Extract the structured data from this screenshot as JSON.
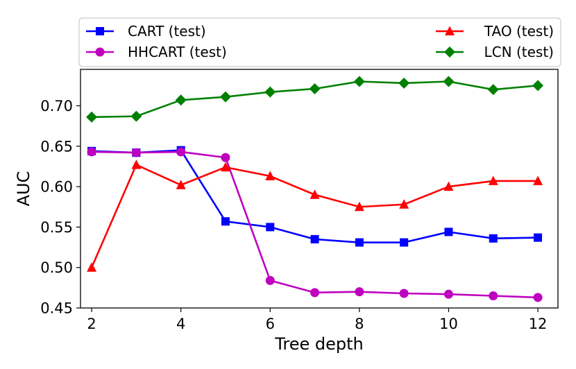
{
  "chart_data": {
    "type": "line",
    "title": "",
    "xlabel": "Tree depth",
    "ylabel": "AUC",
    "xlim": [
      1.75,
      12.45
    ],
    "ylim": [
      0.45,
      0.745
    ],
    "x": [
      2,
      3,
      4,
      5,
      6,
      7,
      8,
      9,
      10,
      11,
      12
    ],
    "xticks": [
      2,
      4,
      6,
      8,
      10,
      12
    ],
    "xtick_labels": [
      "2",
      "4",
      "6",
      "8",
      "10",
      "12"
    ],
    "yticks": [
      0.45,
      0.5,
      0.55,
      0.6,
      0.65,
      0.7
    ],
    "ytick_labels": [
      "0.45",
      "0.50",
      "0.55",
      "0.60",
      "0.65",
      "0.70"
    ],
    "grid": false,
    "legend_position": "top, outside plot, two columns",
    "series": [
      {
        "name": "CART (test)",
        "color": "#0000ff",
        "marker": "square",
        "values": [
          0.644,
          0.642,
          0.645,
          0.557,
          0.55,
          0.535,
          0.531,
          0.531,
          0.544,
          0.536,
          0.537
        ]
      },
      {
        "name": "HHCART (test)",
        "color": "#bf00bf",
        "marker": "circle",
        "values": [
          0.643,
          0.642,
          0.643,
          0.636,
          0.484,
          0.469,
          0.47,
          0.468,
          0.467,
          0.465,
          0.463
        ]
      },
      {
        "name": "TAO (test)",
        "color": "#ff0000",
        "marker": "triangle",
        "values": [
          0.5,
          0.627,
          0.602,
          0.624,
          0.613,
          0.59,
          0.575,
          0.578,
          0.6,
          0.607,
          0.607
        ]
      },
      {
        "name": "LCN (test)",
        "color": "#008000",
        "marker": "diamond",
        "values": [
          0.686,
          0.687,
          0.707,
          0.711,
          0.717,
          0.721,
          0.73,
          0.728,
          0.73,
          0.72,
          0.725
        ]
      }
    ]
  }
}
